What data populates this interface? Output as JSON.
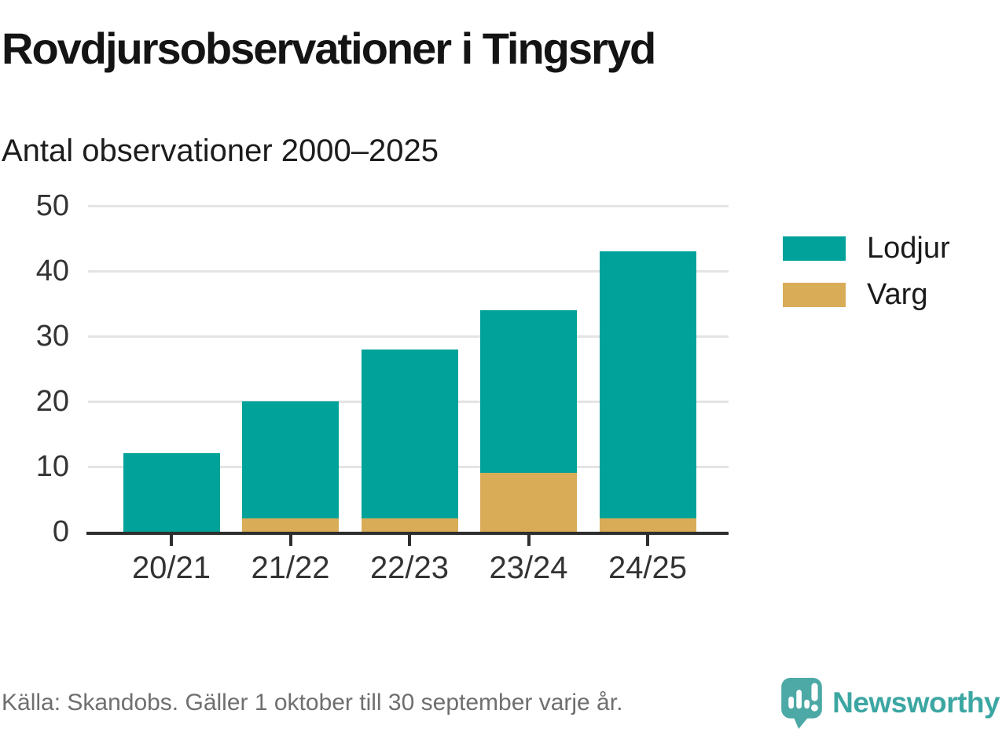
{
  "header": {
    "title": "Rovdjursobservationer i Tingsryd",
    "subtitle": "Antal observationer 2000–2025"
  },
  "chart_data": {
    "type": "bar",
    "stacked": true,
    "title": "Rovdjursobservationer i Tingsryd",
    "subtitle": "Antal observationer 2000–2025",
    "categories": [
      "20/21",
      "21/22",
      "22/23",
      "23/24",
      "24/25"
    ],
    "series": [
      {
        "name": "Lodjur",
        "color": "#00a299",
        "values": [
          12,
          18,
          26,
          25,
          41
        ]
      },
      {
        "name": "Varg",
        "color": "#d9ac57",
        "values": [
          0,
          2,
          2,
          9,
          2
        ]
      }
    ],
    "stack_bottom_to_top": [
      "Varg",
      "Lodjur"
    ],
    "totals": [
      12,
      20,
      28,
      34,
      43
    ],
    "xlabel": "",
    "ylabel": "Antal observationer",
    "ylim": [
      0,
      50
    ],
    "yticks": [
      0,
      10,
      20,
      30,
      40,
      50
    ],
    "grid": true,
    "legend_position": "right"
  },
  "legend": {
    "items": [
      {
        "label": "Lodjur",
        "color": "#00a299"
      },
      {
        "label": "Varg",
        "color": "#d9ac57"
      }
    ]
  },
  "footer": {
    "source": "Källa: Skandobs. Gäller 1 oktober till 30 september varje år.",
    "brand": "Newsworthy"
  },
  "colors": {
    "lodjur": "#00a299",
    "varg": "#d9ac57",
    "gridline": "#e4e4e4",
    "axis": "#2e2e2e",
    "tick_label": "#333333",
    "source_text": "#6f6f6f",
    "logo_bubble": "#4ca9a5",
    "wordmark": "#3ca6a2"
  }
}
